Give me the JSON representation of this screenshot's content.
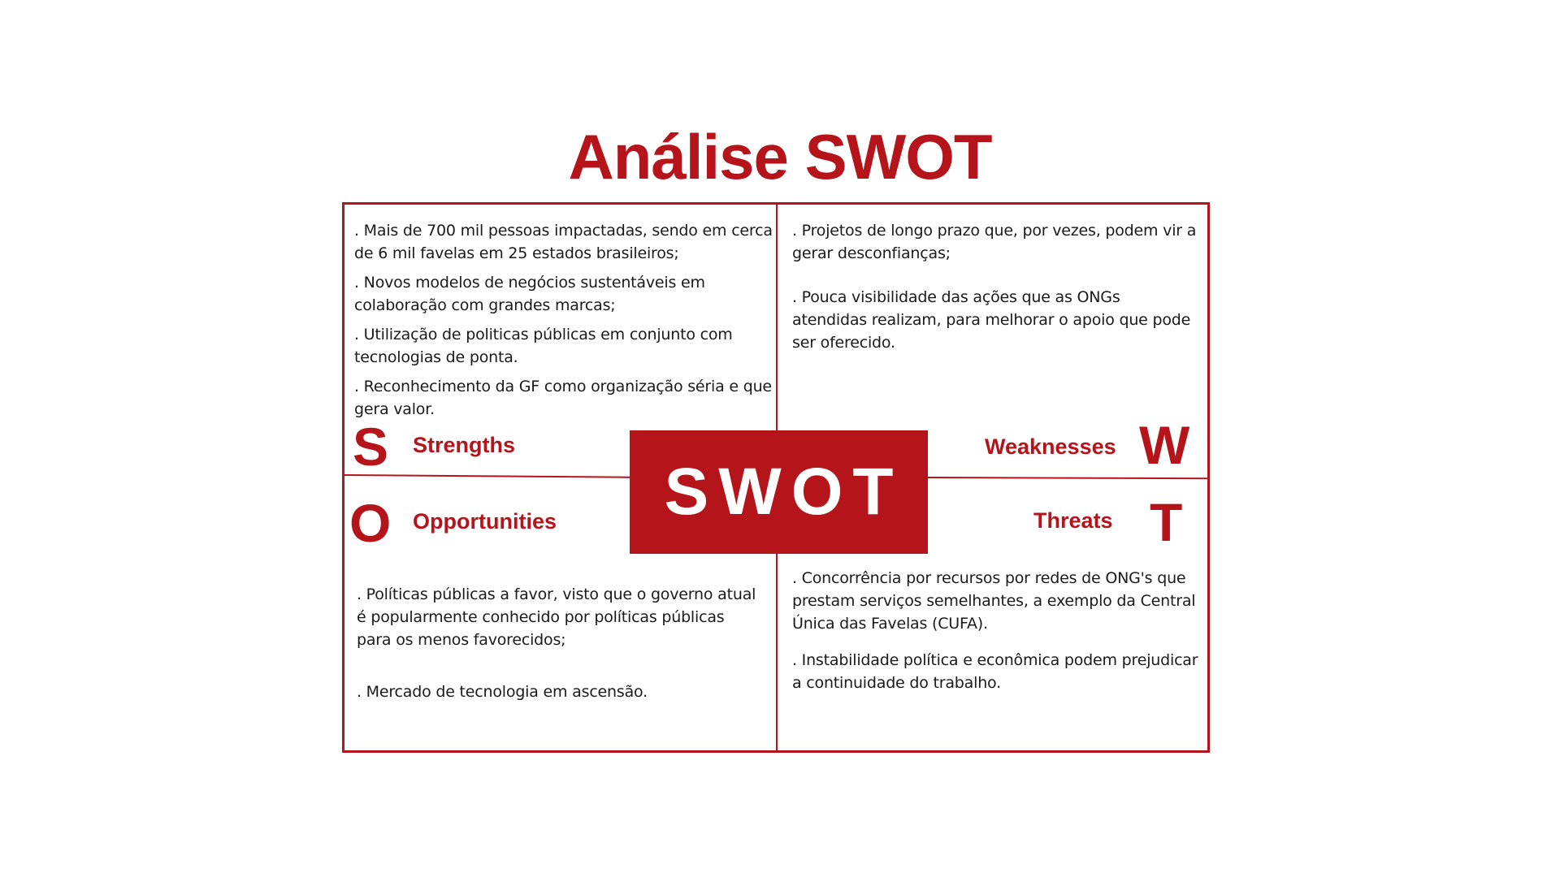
{
  "colors": {
    "accent": "#b5141a",
    "text": "#1a1a1a",
    "background": "#ffffff",
    "center_text": "#ffffff"
  },
  "title": "Análise SWOT",
  "center_label": "SWOT",
  "strengths": {
    "letter": "S",
    "label": "Strengths",
    "items": [
      ". Mais de 700 mil pessoas impactadas, sendo em cerca de 6 mil favelas em 25 estados brasileiros;",
      ". Novos modelos de negócios sustentáveis em colaboração com grandes marcas;",
      ". Utilização de politicas públicas em conjunto com tecnologias de ponta.",
      ". Reconhecimento da GF como organização séria e que gera valor."
    ]
  },
  "weaknesses": {
    "letter": "W",
    "label": "Weaknesses",
    "items": [
      ". Projetos de longo prazo que, por vezes, podem vir a gerar desconfianças;",
      ". Pouca visibilidade das ações que as ONGs atendidas realizam, para melhorar o apoio que pode ser oferecido."
    ]
  },
  "opportunities": {
    "letter": "O",
    "label": "Opportunities",
    "items": [
      ". Políticas públicas a favor, visto que o governo atual é popularmente conhecido por políticas públicas para os menos favorecidos;",
      ". Mercado de tecnologia em ascensão."
    ]
  },
  "threats": {
    "letter": "T",
    "label": "Threats",
    "items": [
      ". Concorrência por recursos por redes de ONG's que prestam serviços semelhantes, a exemplo da Central Única das Favelas (CUFA).",
      ". Instabilidade política e econômica podem prejudicar a continuidade do trabalho."
    ]
  }
}
